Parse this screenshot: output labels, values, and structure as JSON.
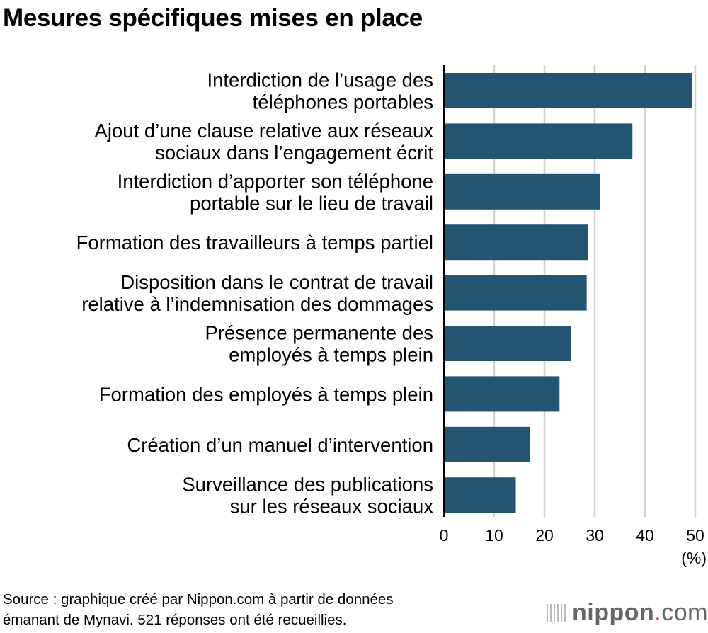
{
  "chart_data": {
    "type": "bar",
    "orientation": "horizontal",
    "title": "Mesures spécifiques mises en place",
    "categories": [
      [
        "Interdiction de l’usage des",
        "téléphones portables"
      ],
      [
        "Ajout d’une clause relative aux réseaux",
        "sociaux dans l’engagement écrit"
      ],
      [
        "Interdiction d’apporter son téléphone",
        "portable sur le lieu de travail"
      ],
      [
        "Formation des travailleurs à temps partiel"
      ],
      [
        "Disposition dans le contrat de travail",
        "relative à l’indemnisation des dommages"
      ],
      [
        "Présence permanente des",
        "employés à temps plein"
      ],
      [
        "Formation des employés à temps plein"
      ],
      [
        "Création d’un manuel d’intervention"
      ],
      [
        "Surveillance des publications",
        "sur les réseaux sociaux"
      ]
    ],
    "values": [
      49.4,
      37.5,
      31.0,
      28.7,
      28.4,
      25.3,
      23.0,
      17.1,
      14.3
    ],
    "xlim": [
      0,
      50
    ],
    "xticks": [
      "0",
      "10",
      "20",
      "30",
      "40",
      "50"
    ],
    "xunit": "(%)",
    "grid": true,
    "bar_color": "#235572",
    "grid_color": "#d0d0d0"
  },
  "source": [
    "Source : graphique créé par Nippon.com à partir de données",
    "émanant de Mynavi. 521 réponses ont été recueillies."
  ],
  "logo": {
    "name": "nippon",
    "dot": ".",
    "suffix": "com"
  }
}
